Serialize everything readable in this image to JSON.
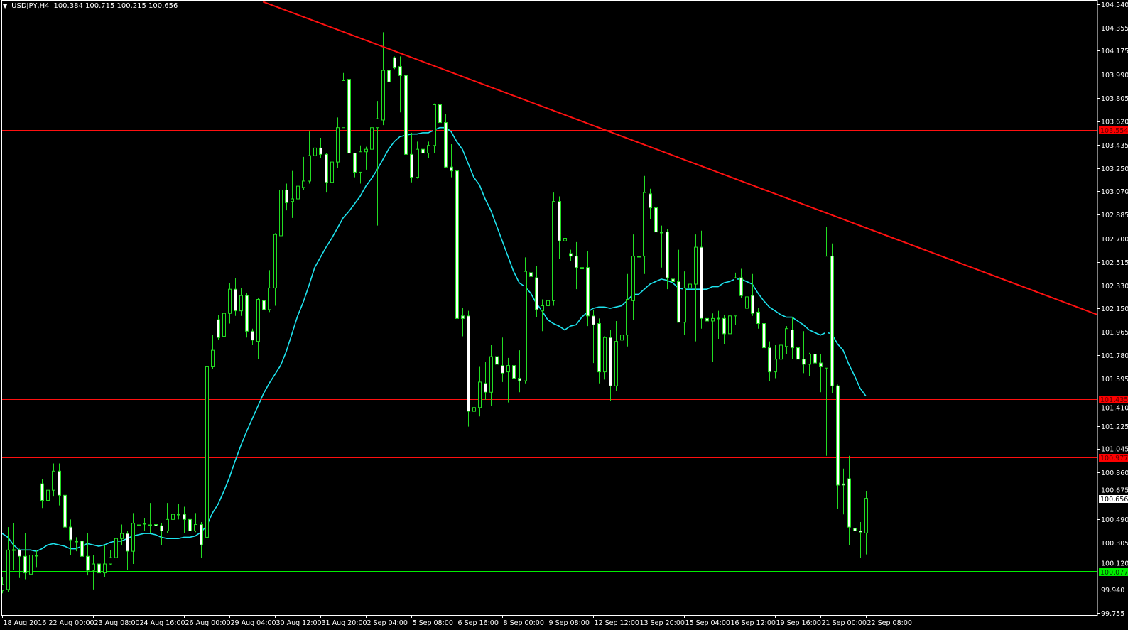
{
  "header": {
    "symbol": "USDJPY,H4",
    "ohlc": "100.384 100.715 100.215 100.656",
    "menu_icon": "triangle-down-icon"
  },
  "colors": {
    "background": "#000000",
    "frame": "#ffffff",
    "bull_outline": "#22dd22",
    "bear_fill": "#ffffff",
    "wick": "#22dd22",
    "ma": "#1ee3ee",
    "trendline": "#ff1010",
    "resistance": "#ff1010",
    "support": "#00ee00",
    "bid_line": "#808080"
  },
  "chart_data": {
    "type": "candlestick",
    "title": "USDJPY,H4",
    "timeframe": "H4",
    "ylim": [
      99.755,
      104.54
    ],
    "y_ticks": [
      "104.540",
      "104.355",
      "104.175",
      "103.990",
      "103.805",
      "103.620",
      "103.435",
      "103.250",
      "103.070",
      "102.885",
      "102.700",
      "102.515",
      "102.330",
      "102.150",
      "101.965",
      "101.780",
      "101.595",
      "101.410",
      "101.225",
      "101.045",
      "100.860",
      "100.675",
      "100.490",
      "100.305",
      "100.120",
      "99.940",
      "99.755"
    ],
    "x_labels": [
      "18 Aug 2016",
      "22 Aug 00:00",
      "23 Aug 08:00",
      "24 Aug 16:00",
      "26 Aug 00:00",
      "29 Aug 04:00",
      "30 Aug 12:00",
      "31 Aug 20:00",
      "2 Sep 04:00",
      "5 Sep 08:00",
      "6 Sep 16:00",
      "8 Sep 00:00",
      "9 Sep 08:00",
      "12 Sep 12:00",
      "13 Sep 20:00",
      "15 Sep 04:00",
      "16 Sep 12:00",
      "19 Sep 16:00",
      "21 Sep 00:00",
      "22 Sep 08:00"
    ],
    "x_label_every_bars": 8,
    "ohlc_order": [
      "open",
      "high",
      "low",
      "close"
    ],
    "candles": [
      [
        99.93,
        100.04,
        99.91,
        99.98
      ],
      [
        99.94,
        100.43,
        99.92,
        100.25
      ],
      [
        100.25,
        100.46,
        100.09,
        100.25
      ],
      [
        100.25,
        100.26,
        100.03,
        100.2
      ],
      [
        100.2,
        100.38,
        100.02,
        100.07
      ],
      [
        100.06,
        100.3,
        100.05,
        100.21
      ],
      [
        100.21,
        100.25,
        100.11,
        100.21
      ],
      [
        100.77,
        100.81,
        100.58,
        100.64
      ],
      [
        100.64,
        100.78,
        100.28,
        100.72
      ],
      [
        100.72,
        100.93,
        100.67,
        100.87
      ],
      [
        100.87,
        100.93,
        100.6,
        100.68
      ],
      [
        100.68,
        100.71,
        100.26,
        100.43
      ],
      [
        100.43,
        100.49,
        100.21,
        100.33
      ],
      [
        100.32,
        100.35,
        100.24,
        100.32
      ],
      [
        100.32,
        100.39,
        100.03,
        100.2
      ],
      [
        100.2,
        100.38,
        100.05,
        100.09
      ],
      [
        100.09,
        100.21,
        99.94,
        100.14
      ],
      [
        100.14,
        100.25,
        99.98,
        100.07
      ],
      [
        100.07,
        100.29,
        100.04,
        100.14
      ],
      [
        100.14,
        100.25,
        100.13,
        100.19
      ],
      [
        100.19,
        100.52,
        100.18,
        100.34
      ],
      [
        100.34,
        100.45,
        100.29,
        100.38
      ],
      [
        100.38,
        100.4,
        100.09,
        100.24
      ],
      [
        100.24,
        100.54,
        100.14,
        100.46
      ],
      [
        100.45,
        100.61,
        100.38,
        100.45
      ],
      [
        100.46,
        100.5,
        100.4,
        100.46
      ],
      [
        100.45,
        100.62,
        100.38,
        100.45
      ],
      [
        100.45,
        100.54,
        100.41,
        100.44
      ],
      [
        100.44,
        100.46,
        100.29,
        100.4
      ],
      [
        100.4,
        100.62,
        100.38,
        100.49
      ],
      [
        100.49,
        100.59,
        100.46,
        100.53
      ],
      [
        100.53,
        100.61,
        100.49,
        100.53
      ],
      [
        100.53,
        100.59,
        100.38,
        100.49
      ],
      [
        100.49,
        100.52,
        100.39,
        100.4
      ],
      [
        100.4,
        100.54,
        100.39,
        100.45
      ],
      [
        100.45,
        100.47,
        100.19,
        100.29
      ],
      [
        100.35,
        101.72,
        100.12,
        101.69
      ],
      [
        101.69,
        101.94,
        101.67,
        101.82
      ],
      [
        102.06,
        102.1,
        101.9,
        101.92
      ],
      [
        101.93,
        102.15,
        101.83,
        102.11
      ],
      [
        102.11,
        102.35,
        102.03,
        102.3
      ],
      [
        102.3,
        102.39,
        102.09,
        102.13
      ],
      [
        102.13,
        102.31,
        102.09,
        102.25
      ],
      [
        102.25,
        102.27,
        101.92,
        101.97
      ],
      [
        101.97,
        101.99,
        101.86,
        101.9
      ],
      [
        101.89,
        102.23,
        101.75,
        102.22
      ],
      [
        102.21,
        102.22,
        102.03,
        102.14
      ],
      [
        102.14,
        102.45,
        102.12,
        102.31
      ],
      [
        102.31,
        102.74,
        102.17,
        102.73
      ],
      [
        102.72,
        103.11,
        102.62,
        103.08
      ],
      [
        103.08,
        103.13,
        102.92,
        102.98
      ],
      [
        102.99,
        103.23,
        102.86,
        103.01
      ],
      [
        103.01,
        103.13,
        102.9,
        103.11
      ],
      [
        103.1,
        103.34,
        103.08,
        103.15
      ],
      [
        103.15,
        103.54,
        103.13,
        103.35
      ],
      [
        103.35,
        103.5,
        103.25,
        103.41
      ],
      [
        103.41,
        103.49,
        103.33,
        103.36
      ],
      [
        103.36,
        103.37,
        103.06,
        103.14
      ],
      [
        103.14,
        103.32,
        103.12,
        103.3
      ],
      [
        103.3,
        103.65,
        103.25,
        103.57
      ],
      [
        103.57,
        104.0,
        103.57,
        103.94
      ],
      [
        103.95,
        103.95,
        103.12,
        103.37
      ],
      [
        103.37,
        103.37,
        103.18,
        103.22
      ],
      [
        103.22,
        103.43,
        103.13,
        103.38
      ],
      [
        103.38,
        103.42,
        103.24,
        103.4
      ],
      [
        103.4,
        103.71,
        103.4,
        103.57
      ],
      [
        103.57,
        103.78,
        102.8,
        103.64
      ],
      [
        103.63,
        104.32,
        103.59,
        104.02
      ],
      [
        104.02,
        104.09,
        103.89,
        103.93
      ],
      [
        104.12,
        104.13,
        104.03,
        104.04
      ],
      [
        104.05,
        104.13,
        103.69,
        103.98
      ],
      [
        103.98,
        104.02,
        103.28,
        103.36
      ],
      [
        103.36,
        103.53,
        103.14,
        103.18
      ],
      [
        103.18,
        103.46,
        103.17,
        103.4
      ],
      [
        103.4,
        103.49,
        103.28,
        103.37
      ],
      [
        103.37,
        103.46,
        103.33,
        103.43
      ],
      [
        103.43,
        103.76,
        103.37,
        103.75
      ],
      [
        103.75,
        103.81,
        103.36,
        103.61
      ],
      [
        103.61,
        103.68,
        103.25,
        103.26
      ],
      [
        103.26,
        103.44,
        103.18,
        103.23
      ],
      [
        103.23,
        103.23,
        102.0,
        102.07
      ],
      [
        102.09,
        102.15,
        101.93,
        102.07
      ],
      [
        102.09,
        102.13,
        101.22,
        101.34
      ],
      [
        101.34,
        101.54,
        101.31,
        101.37
      ],
      [
        101.37,
        101.69,
        101.3,
        101.57
      ],
      [
        101.56,
        101.73,
        101.43,
        101.49
      ],
      [
        101.49,
        101.86,
        101.38,
        101.77
      ],
      [
        101.77,
        101.78,
        101.65,
        101.71
      ],
      [
        101.7,
        101.92,
        101.57,
        101.64
      ],
      [
        101.65,
        101.76,
        101.41,
        101.7
      ],
      [
        101.7,
        101.73,
        101.48,
        101.6
      ],
      [
        101.6,
        101.82,
        101.49,
        101.58
      ],
      [
        101.58,
        102.55,
        101.56,
        102.44
      ],
      [
        102.43,
        102.6,
        102.37,
        102.4
      ],
      [
        102.39,
        102.48,
        102.08,
        102.14
      ],
      [
        102.13,
        102.22,
        101.97,
        102.17
      ],
      [
        102.17,
        102.25,
        102.01,
        102.21
      ],
      [
        102.21,
        103.06,
        102.17,
        102.99
      ],
      [
        102.99,
        103.03,
        102.54,
        102.68
      ],
      [
        102.68,
        102.74,
        102.65,
        102.7
      ],
      [
        102.58,
        102.61,
        102.52,
        102.56
      ],
      [
        102.56,
        102.67,
        102.3,
        102.47
      ],
      [
        102.47,
        102.61,
        102.4,
        102.46
      ],
      [
        102.47,
        102.6,
        102.01,
        102.09
      ],
      [
        102.09,
        102.14,
        101.72,
        102.02
      ],
      [
        102.03,
        102.07,
        101.56,
        101.65
      ],
      [
        101.65,
        101.93,
        101.59,
        101.92
      ],
      [
        101.92,
        101.98,
        101.42,
        101.54
      ],
      [
        101.54,
        102.05,
        101.5,
        101.89
      ],
      [
        101.9,
        102.01,
        101.72,
        101.94
      ],
      [
        101.94,
        102.42,
        101.85,
        102.22
      ],
      [
        102.21,
        102.73,
        102.06,
        102.56
      ],
      [
        102.56,
        102.75,
        102.53,
        102.56
      ],
      [
        102.56,
        103.19,
        102.42,
        103.06
      ],
      [
        103.05,
        103.09,
        102.85,
        102.94
      ],
      [
        102.94,
        103.36,
        102.57,
        102.75
      ],
      [
        102.75,
        102.8,
        102.47,
        102.75
      ],
      [
        102.75,
        102.77,
        102.3,
        102.39
      ],
      [
        102.38,
        102.47,
        102.25,
        102.36
      ],
      [
        102.36,
        102.61,
        102.04,
        102.04
      ],
      [
        102.04,
        102.44,
        101.94,
        102.31
      ],
      [
        102.31,
        102.55,
        102.16,
        102.34
      ],
      [
        102.34,
        102.73,
        101.89,
        102.63
      ],
      [
        102.63,
        102.76,
        101.99,
        102.07
      ],
      [
        102.07,
        102.24,
        102.0,
        102.05
      ],
      [
        102.05,
        102.11,
        101.73,
        102.07
      ],
      [
        102.07,
        102.13,
        101.91,
        102.07
      ],
      [
        102.07,
        102.1,
        101.87,
        101.95
      ],
      [
        101.95,
        102.22,
        101.77,
        102.09
      ],
      [
        102.09,
        102.43,
        102.02,
        102.39
      ],
      [
        102.39,
        102.46,
        102.23,
        102.25
      ],
      [
        102.15,
        102.31,
        102.13,
        102.24
      ],
      [
        102.25,
        102.42,
        102.09,
        102.11
      ],
      [
        102.12,
        102.15,
        101.99,
        102.03
      ],
      [
        102.03,
        102.16,
        101.7,
        101.84
      ],
      [
        101.84,
        101.89,
        101.58,
        101.65
      ],
      [
        101.65,
        101.86,
        101.6,
        101.75
      ],
      [
        101.75,
        101.93,
        101.74,
        101.86
      ],
      [
        101.85,
        102.01,
        101.79,
        101.99
      ],
      [
        101.98,
        102.08,
        101.75,
        101.84
      ],
      [
        101.84,
        101.88,
        101.54,
        101.75
      ],
      [
        101.75,
        101.97,
        101.64,
        101.71
      ],
      [
        101.71,
        101.8,
        101.62,
        101.79
      ],
      [
        101.79,
        101.87,
        101.68,
        101.72
      ],
      [
        101.72,
        101.79,
        101.49,
        101.69
      ],
      [
        101.68,
        102.79,
        100.99,
        102.56
      ],
      [
        102.56,
        102.66,
        101.48,
        101.54
      ],
      [
        101.54,
        101.55,
        100.57,
        100.76
      ],
      [
        100.77,
        100.89,
        100.53,
        100.76
      ],
      [
        100.81,
        100.99,
        100.29,
        100.43
      ],
      [
        100.42,
        100.45,
        100.11,
        100.4
      ],
      [
        100.4,
        100.47,
        100.19,
        100.39
      ],
      [
        100.384,
        100.715,
        100.215,
        100.656
      ]
    ],
    "moving_average": [
      100.38,
      100.35,
      100.29,
      100.25,
      100.25,
      100.25,
      100.24,
      100.26,
      100.29,
      100.3,
      100.29,
      100.28,
      100.26,
      100.26,
      100.28,
      100.3,
      100.29,
      100.28,
      100.29,
      100.31,
      100.32,
      100.32,
      100.34,
      100.36,
      100.37,
      100.38,
      100.38,
      100.37,
      100.35,
      100.34,
      100.34,
      100.34,
      100.35,
      100.35,
      100.36,
      100.39,
      100.44,
      100.54,
      100.61,
      100.71,
      100.82,
      100.95,
      101.07,
      101.18,
      101.28,
      101.38,
      101.48,
      101.56,
      101.63,
      101.7,
      101.81,
      101.95,
      102.09,
      102.2,
      102.33,
      102.47,
      102.55,
      102.63,
      102.7,
      102.78,
      102.86,
      102.91,
      102.97,
      103.03,
      103.11,
      103.17,
      103.24,
      103.32,
      103.4,
      103.46,
      103.5,
      103.51,
      103.52,
      103.52,
      103.53,
      103.53,
      103.55,
      103.57,
      103.57,
      103.54,
      103.46,
      103.4,
      103.29,
      103.18,
      103.12,
      103.01,
      102.92,
      102.8,
      102.68,
      102.56,
      102.44,
      102.35,
      102.32,
      102.27,
      102.19,
      102.13,
      102.06,
      102.03,
      102.01,
      101.98,
      102.01,
      102.02,
      102.08,
      102.12,
      102.15,
      102.16,
      102.16,
      102.15,
      102.16,
      102.17,
      102.21,
      102.26,
      102.26,
      102.3,
      102.34,
      102.36,
      102.38,
      102.37,
      102.35,
      102.31,
      102.3,
      102.3,
      102.3,
      102.3,
      102.3,
      102.32,
      102.32,
      102.35,
      102.36,
      102.38,
      102.38,
      102.36,
      102.34,
      102.27,
      102.21,
      102.16,
      102.13,
      102.1,
      102.08,
      102.08,
      102.05,
      102.02,
      101.98,
      101.96,
      101.94,
      101.96,
      101.95,
      101.87,
      101.82,
      101.71,
      101.62,
      101.52,
      101.46
    ],
    "trendline": {
      "from": {
        "bar": 45.9,
        "price": 104.56
      },
      "to": {
        "bar": 192.75,
        "price": 102.1
      }
    },
    "horizontal_lines": [
      {
        "price": 103.554,
        "label": "103.554",
        "kind": "resistance",
        "color": "#ff1010",
        "tag_bg": "#ff0000",
        "tag_fg": "#600000",
        "weight": 1
      },
      {
        "price": 101.435,
        "label": "101.435",
        "kind": "resistance",
        "color": "#ff1010",
        "tag_bg": "#ff0000",
        "tag_fg": "#600000",
        "weight": 1
      },
      {
        "price": 100.977,
        "label": "100.977",
        "kind": "resistance",
        "color": "#ff1010",
        "tag_bg": "#ff0000",
        "tag_fg": "#600000",
        "weight": 2
      },
      {
        "price": 100.656,
        "label": "100.656",
        "kind": "bid",
        "color": "#808080",
        "tag_bg": "#ffffff",
        "tag_fg": "#000000",
        "weight": 1
      },
      {
        "price": 100.077,
        "label": "100.077",
        "kind": "support",
        "color": "#00ee00",
        "tag_bg": "#00ee00",
        "tag_fg": "#004000",
        "weight": 2
      }
    ],
    "grid": false,
    "legend": "none"
  }
}
